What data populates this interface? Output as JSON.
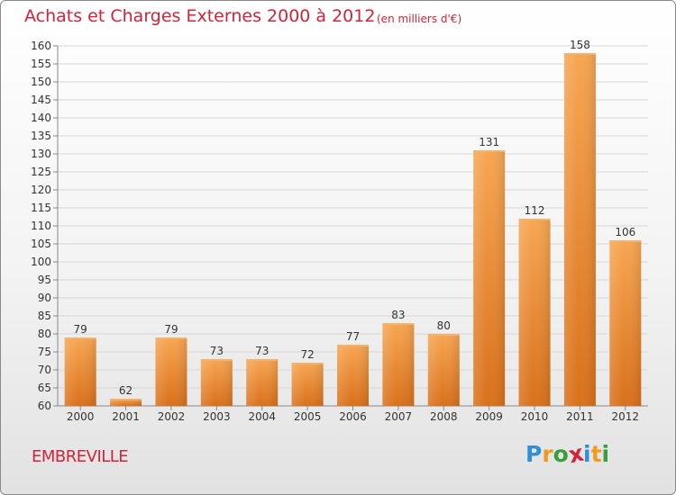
{
  "header": {
    "title": "Achats et Charges Externes 2000 à 2012",
    "unit": "(en milliers d'€)"
  },
  "footer": {
    "place": "EMBREVILLE",
    "logo_letters": [
      "P",
      "r",
      "o",
      "x",
      "i",
      "t",
      "i"
    ],
    "logo_colors": [
      "#2f8fd8",
      "#f39a1e",
      "#3a9f3a",
      "#d0243a",
      "#2f8fd8",
      "#f39a1e",
      "#3a9f3a"
    ]
  },
  "colors": {
    "bar": "#f28a2a",
    "accent": "#d0243a"
  },
  "chart_data": {
    "type": "bar",
    "categories": [
      "2000",
      "2001",
      "2002",
      "2003",
      "2004",
      "2005",
      "2006",
      "2007",
      "2008",
      "2009",
      "2010",
      "2011",
      "2012"
    ],
    "values": [
      79,
      62,
      79,
      73,
      73,
      72,
      77,
      83,
      80,
      131,
      112,
      158,
      106
    ],
    "ylim": [
      60,
      160
    ],
    "yticks": [
      60,
      65,
      70,
      75,
      80,
      85,
      90,
      95,
      100,
      105,
      110,
      115,
      120,
      125,
      130,
      135,
      140,
      145,
      150,
      155,
      160
    ],
    "grid": true,
    "title": "Achats et Charges Externes 2000 à 2012",
    "xlabel": "",
    "ylabel": ""
  }
}
